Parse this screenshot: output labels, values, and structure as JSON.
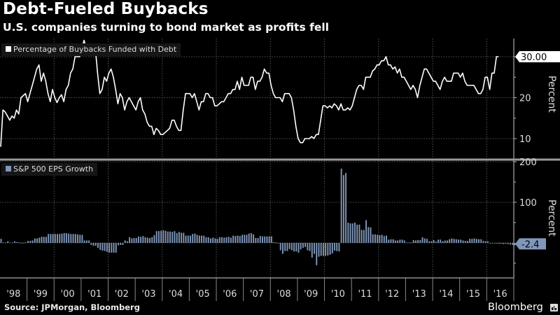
{
  "header": {
    "title": "Debt-Fueled Buybacks",
    "subtitle": "U.S. companies turning to bond market as profits fell"
  },
  "footer": {
    "source": "Source: JPMorgan, Bloomberg",
    "brand": "Bloomberg",
    "brand_icon": "bloomberg-terminal-icon"
  },
  "colors": {
    "background": "#000000",
    "line": "#ffffff",
    "bars": "#7f97b9",
    "gridline": "#555555",
    "axis": "#999999"
  },
  "chart_data": [
    {
      "type": "line",
      "title": "Debt-Fueled Buybacks",
      "legend": [
        "Percentage of Buybacks Funded with Debt"
      ],
      "legend_position": "top-left",
      "ylabel": "Percent",
      "ylim": [
        6,
        34.5
      ],
      "yticks": [
        10,
        20,
        30
      ],
      "grid": true,
      "last_value_label": "30.00",
      "x_start": 1998.0,
      "x_step_years": 0.0833,
      "series": [
        {
          "name": "Percentage of Buybacks Funded with Debt",
          "values": [
            8,
            17,
            16.5,
            15.5,
            14.5,
            15.5,
            15,
            17,
            16,
            20,
            20.5,
            21,
            19,
            21,
            23,
            25,
            27,
            28,
            24,
            26,
            24,
            21,
            19,
            22,
            20,
            18.8,
            20,
            20.7,
            19,
            22,
            23,
            26,
            27,
            30,
            30,
            30,
            32,
            34,
            32,
            31,
            32,
            31,
            32,
            26,
            21,
            22,
            25,
            24,
            26,
            27,
            25,
            22,
            18.5,
            21,
            20,
            17,
            19,
            20,
            19,
            18,
            17,
            19,
            20,
            17,
            16,
            14,
            13,
            13,
            11,
            12.5,
            12,
            11,
            11,
            11.5,
            12,
            12.5,
            14.5,
            14.5,
            13,
            12,
            12,
            17,
            21,
            21,
            21,
            20,
            21,
            19,
            17,
            19,
            19,
            21,
            21,
            20,
            20,
            18,
            18,
            18.5,
            19,
            19,
            20,
            21,
            21,
            22,
            22,
            24,
            22,
            25,
            23,
            23,
            23,
            25,
            25,
            22,
            24,
            24,
            25,
            27,
            26,
            26,
            23,
            21,
            20,
            20,
            20,
            19,
            21,
            21,
            21,
            20,
            17,
            13,
            10,
            9,
            9,
            10,
            10,
            10,
            10.5,
            10,
            11,
            11,
            14.5,
            18,
            18,
            17.5,
            18,
            17.5,
            18.5,
            18,
            17,
            18.5,
            17,
            17,
            17.5,
            17,
            18,
            20,
            22,
            23,
            23,
            22,
            25,
            25,
            25,
            26.5,
            27,
            28,
            28,
            29,
            29,
            30,
            28,
            28,
            27,
            27.5,
            26,
            27,
            25,
            25,
            24,
            23,
            22,
            23,
            22,
            20,
            23,
            25,
            27,
            27,
            26,
            25,
            24,
            24,
            23,
            22,
            24,
            25,
            24,
            24,
            24,
            26,
            26,
            26,
            25,
            26,
            24,
            23,
            23,
            23,
            23,
            22,
            21,
            21,
            22,
            25,
            25,
            22,
            26,
            26,
            30,
            30
          ]
        }
      ]
    },
    {
      "type": "bar",
      "legend": [
        "S&P 500 EPS Growth"
      ],
      "legend_position": "top-left",
      "ylabel": "Percent",
      "ylim": [
        -55,
        205
      ],
      "yticks": [
        100,
        200
      ],
      "grid": true,
      "last_value_label": "-2.4",
      "x_start": 1998.0,
      "x_step_years": 0.0833,
      "xtick_labels": [
        "'98",
        "'99",
        "'00",
        "'01",
        "'02",
        "'03",
        "'04",
        "'05",
        "'06",
        "'07",
        "'08",
        "'09",
        "'10",
        "'11",
        "'12",
        "'13",
        "'14",
        "'15",
        "'16"
      ],
      "series": [
        {
          "name": "S&P 500 EPS Growth",
          "values": [
            10,
            1,
            1,
            4,
            1,
            1,
            4,
            2,
            1,
            0.5,
            0.5,
            1,
            5,
            5,
            6,
            11,
            11,
            13,
            15,
            15,
            15,
            22,
            22,
            22,
            22,
            22,
            22,
            23,
            24,
            24,
            23,
            22,
            22,
            22,
            21,
            20,
            20,
            6,
            6,
            6,
            -5,
            -7,
            -7,
            -12,
            -17,
            -19,
            -20,
            -22,
            -24,
            -24,
            -24,
            -24,
            -6,
            -5,
            -5,
            6,
            4,
            14,
            11,
            12,
            12,
            16,
            15,
            17,
            14,
            13,
            12,
            14,
            19,
            29,
            29,
            30,
            31,
            30,
            28,
            28,
            27,
            29,
            24,
            27,
            25,
            25,
            18,
            18,
            18,
            22,
            23,
            20,
            18,
            18,
            18,
            14,
            14,
            11,
            13,
            11,
            10,
            14,
            14,
            13,
            14,
            15,
            13,
            18,
            17,
            18,
            17,
            20,
            20,
            20,
            23,
            24,
            21,
            12,
            12,
            17,
            16,
            16,
            16,
            16,
            16,
            2,
            1,
            -1,
            -18,
            -27,
            -20,
            -20,
            -15,
            -18,
            -21,
            -21,
            -24,
            -16,
            -12,
            -10,
            -18,
            -20,
            -36,
            -27,
            -55,
            -34,
            -32,
            -32,
            -32,
            -31,
            -29,
            -26,
            -19,
            -20,
            -21,
            183,
            167,
            172,
            50,
            48,
            48,
            50,
            45,
            45,
            32,
            32,
            56,
            39,
            38,
            21,
            21,
            20,
            19,
            20,
            17,
            18,
            8,
            9,
            9,
            6,
            6,
            8,
            8,
            6,
            1,
            1,
            1,
            7,
            6,
            7,
            7,
            14,
            11,
            10,
            4,
            4,
            7,
            3,
            8,
            8,
            4,
            6,
            6,
            9,
            11,
            10,
            9,
            8,
            8,
            6,
            5,
            5,
            10,
            10,
            11,
            10,
            9,
            9,
            5,
            4,
            4,
            -1,
            -1,
            -1,
            -1,
            -2,
            -2,
            -3,
            -2,
            -3,
            -4,
            -5,
            -6,
            -5,
            -6,
            -2.4
          ]
        }
      ]
    }
  ]
}
